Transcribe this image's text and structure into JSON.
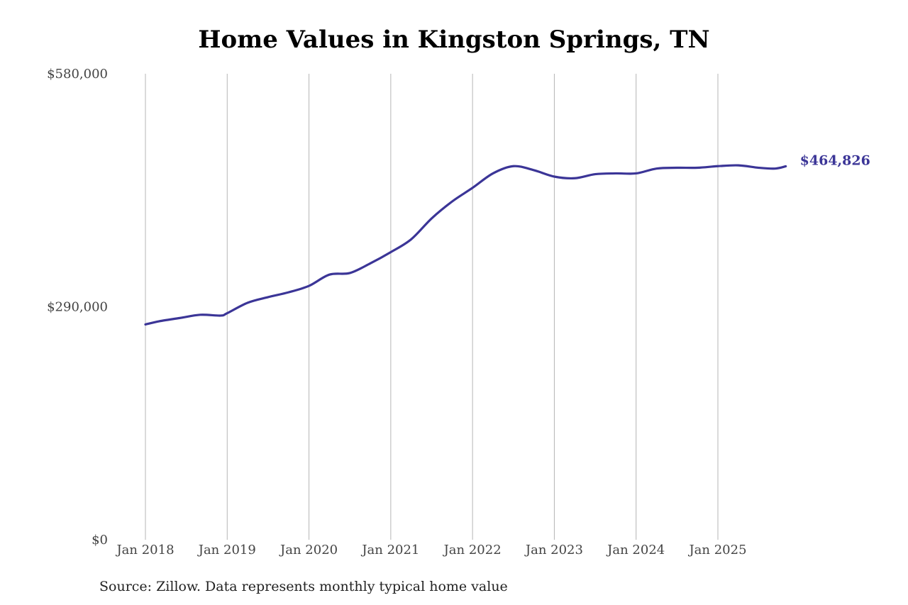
{
  "chart_data": {
    "type": "line",
    "title": "Home Values in Kingston Springs, TN",
    "source": "Source: Zillow. Data represents monthly typical home value",
    "xlabel": "",
    "ylabel": "",
    "ylim": [
      0,
      580000
    ],
    "y_ticks": [
      {
        "value": 0,
        "label": "$0"
      },
      {
        "value": 290000,
        "label": "$290,000"
      },
      {
        "value": 580000,
        "label": "$580,000"
      }
    ],
    "x_ticks": [
      {
        "value": 2018.0,
        "label": "Jan 2018"
      },
      {
        "value": 2019.0,
        "label": "Jan 2019"
      },
      {
        "value": 2020.0,
        "label": "Jan 2020"
      },
      {
        "value": 2021.0,
        "label": "Jan 2021"
      },
      {
        "value": 2022.0,
        "label": "Jan 2022"
      },
      {
        "value": 2023.0,
        "label": "Jan 2023"
      },
      {
        "value": 2024.0,
        "label": "Jan 2024"
      },
      {
        "value": 2025.0,
        "label": "Jan 2025"
      }
    ],
    "grid": "vertical",
    "series": [
      {
        "color": "#3b3597",
        "end_label": "$464,826",
        "points": [
          {
            "x": 2018.0,
            "y": 268000
          },
          {
            "x": 2018.17,
            "y": 272000
          },
          {
            "x": 2018.42,
            "y": 276000
          },
          {
            "x": 2018.67,
            "y": 280000
          },
          {
            "x": 2018.92,
            "y": 279000
          },
          {
            "x": 2019.0,
            "y": 282000
          },
          {
            "x": 2019.25,
            "y": 295000
          },
          {
            "x": 2019.5,
            "y": 302000
          },
          {
            "x": 2019.75,
            "y": 308000
          },
          {
            "x": 2020.0,
            "y": 316000
          },
          {
            "x": 2020.25,
            "y": 330000
          },
          {
            "x": 2020.5,
            "y": 332000
          },
          {
            "x": 2020.75,
            "y": 344000
          },
          {
            "x": 2021.0,
            "y": 358000
          },
          {
            "x": 2021.25,
            "y": 374000
          },
          {
            "x": 2021.5,
            "y": 400000
          },
          {
            "x": 2021.75,
            "y": 421000
          },
          {
            "x": 2022.0,
            "y": 438000
          },
          {
            "x": 2022.25,
            "y": 456000
          },
          {
            "x": 2022.5,
            "y": 465000
          },
          {
            "x": 2022.75,
            "y": 460000
          },
          {
            "x": 2023.0,
            "y": 452000
          },
          {
            "x": 2023.25,
            "y": 450000
          },
          {
            "x": 2023.5,
            "y": 455000
          },
          {
            "x": 2023.75,
            "y": 456000
          },
          {
            "x": 2024.0,
            "y": 456000
          },
          {
            "x": 2024.25,
            "y": 462000
          },
          {
            "x": 2024.5,
            "y": 463000
          },
          {
            "x": 2024.75,
            "y": 463000
          },
          {
            "x": 2025.0,
            "y": 465000
          },
          {
            "x": 2025.25,
            "y": 466000
          },
          {
            "x": 2025.5,
            "y": 463000
          },
          {
            "x": 2025.7,
            "y": 462000
          },
          {
            "x": 2025.83,
            "y": 464826
          }
        ]
      }
    ]
  }
}
